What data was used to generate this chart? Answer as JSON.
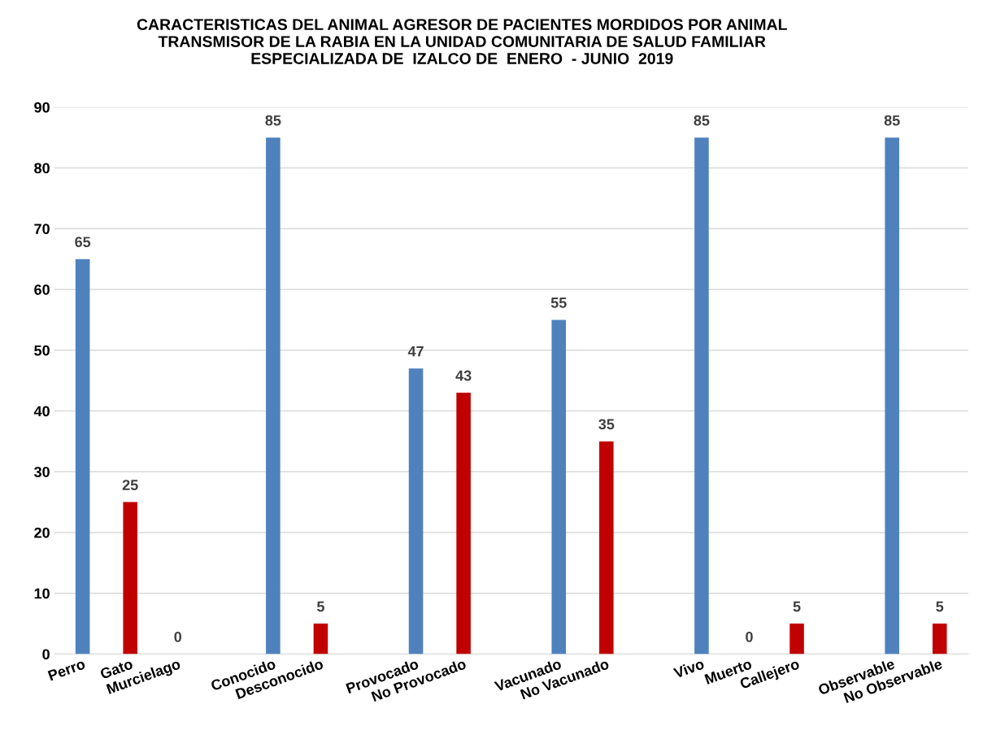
{
  "chart_data": {
    "type": "bar",
    "title": "CARACTERISTICAS DEL ANIMAL AGRESOR DE PACIENTES MORDIDOS POR ANIMAL\nTRANSMISOR DE LA RABIA EN LA UNIDAD COMUNITARIA DE SALUD FAMILIAR\nESPECIALIZADA DE  IZALCO DE  ENERO  - JUNIO  2019",
    "categories": [
      "Perro",
      "Gato",
      "Murcielago",
      null,
      "Conocido",
      "Desconocido",
      null,
      "Provocado",
      "No Provocado",
      null,
      "Vacunado",
      "No Vacunado",
      null,
      "Vivo",
      "Muerto",
      "Callejero",
      null,
      "Observable",
      "No Observable"
    ],
    "values": [
      65,
      25,
      0,
      null,
      85,
      5,
      null,
      47,
      43,
      null,
      55,
      35,
      null,
      85,
      0,
      5,
      null,
      85,
      5
    ],
    "colors": [
      "#4f81bd",
      "#c00000",
      "#c00000",
      null,
      "#4f81bd",
      "#c00000",
      null,
      "#4f81bd",
      "#c00000",
      null,
      "#4f81bd",
      "#c00000",
      null,
      "#4f81bd",
      "#c00000",
      "#c00000",
      null,
      "#4f81bd",
      "#c00000"
    ],
    "data_labels": true,
    "ylim": [
      0,
      90
    ],
    "yticks": [
      0,
      10,
      20,
      30,
      40,
      50,
      60,
      70,
      80,
      90
    ],
    "grid": "y",
    "legend": false
  }
}
